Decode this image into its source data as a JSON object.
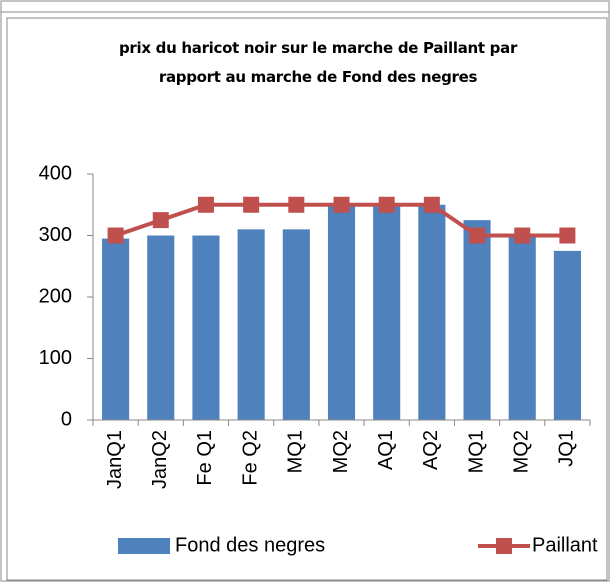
{
  "chart_data": {
    "type": "bar-line",
    "title": "prix du haricot noir sur le marche de Paillant par rapport au marche de Fond des negres",
    "categories": [
      "JanQ1",
      "JanQ2",
      "Fe Q1",
      "Fe Q2",
      "MQ1",
      "MQ2",
      "AQ1",
      "AQ2",
      "MQ1",
      "MQ2",
      "JQ1"
    ],
    "series": [
      {
        "name": "Fond des negres",
        "type": "bar",
        "color": "#4f81bd",
        "values": [
          295,
          300,
          300,
          310,
          310,
          350,
          350,
          350,
          325,
          300,
          275
        ]
      },
      {
        "name": "Paillant",
        "type": "line",
        "color": "#c0504d",
        "values": [
          300,
          325,
          350,
          350,
          350,
          350,
          350,
          350,
          300,
          300,
          300
        ]
      }
    ],
    "ylim": [
      0,
      400
    ],
    "yticks": [
      0,
      100,
      200,
      300,
      400
    ],
    "grid": false,
    "legend": "bottom"
  }
}
